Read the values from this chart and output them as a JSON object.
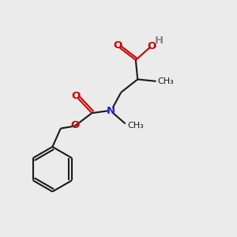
{
  "bg_color": "#ebebeb",
  "bond_color": "#1a1a1a",
  "O_color": "#cc0000",
  "N_color": "#2222cc",
  "H_color": "#888888",
  "line_width": 1.5,
  "font_size": 9.5,
  "figsize": [
    3.0,
    3.0
  ],
  "dpi": 100,
  "xlim": [
    0,
    10
  ],
  "ylim": [
    0,
    10
  ]
}
